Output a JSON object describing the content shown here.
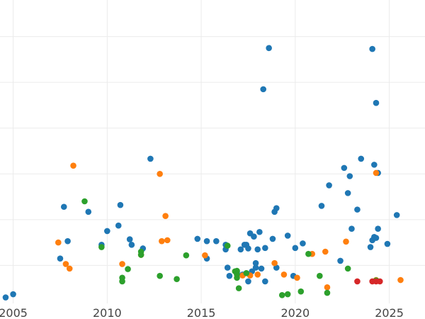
{
  "chart_data": {
    "type": "scatter",
    "title": "",
    "xlabel": "",
    "ylabel": "",
    "grid": true,
    "legend": "none",
    "xlim": [
      2004.3,
      2026.9
    ],
    "ylim": [
      -0.3,
      6.3
    ],
    "x_ticks": [
      2005,
      2010,
      2015,
      2020,
      2025
    ],
    "x_tick_labels": [
      "2005",
      "2010",
      "2015",
      "2020",
      "2025"
    ],
    "y_gridlines": [
      0.5,
      1.5,
      2.5,
      3.5,
      4.5,
      5.5
    ],
    "series": [
      {
        "color": "#1f77b4",
        "points": [
          [
            2004.6,
            -0.2
          ],
          [
            2005.0,
            -0.13
          ],
          [
            2007.5,
            0.65
          ],
          [
            2007.7,
            1.78
          ],
          [
            2007.9,
            1.03
          ],
          [
            2009.0,
            1.67
          ],
          [
            2009.7,
            0.95
          ],
          [
            2010.0,
            1.25
          ],
          [
            2010.6,
            1.37
          ],
          [
            2010.7,
            1.82
          ],
          [
            2011.2,
            1.07
          ],
          [
            2011.3,
            0.95
          ],
          [
            2011.9,
            0.87
          ],
          [
            2012.3,
            2.83
          ],
          [
            2014.8,
            1.08
          ],
          [
            2015.3,
            1.03
          ],
          [
            2015.3,
            0.65
          ],
          [
            2015.8,
            1.03
          ],
          [
            2016.3,
            0.95
          ],
          [
            2016.3,
            0.85
          ],
          [
            2016.4,
            0.45
          ],
          [
            2016.5,
            0.27
          ],
          [
            2016.9,
            0.35
          ],
          [
            2017.1,
            0.85
          ],
          [
            2017.2,
            0.3
          ],
          [
            2017.3,
            0.95
          ],
          [
            2017.4,
            0.95
          ],
          [
            2017.5,
            0.87
          ],
          [
            2017.5,
            0.15
          ],
          [
            2017.6,
            1.2
          ],
          [
            2017.7,
            0.37
          ],
          [
            2017.8,
            1.13
          ],
          [
            2017.9,
            0.45
          ],
          [
            2017.9,
            0.55
          ],
          [
            2018.0,
            0.85
          ],
          [
            2018.1,
            1.23
          ],
          [
            2018.2,
            0.43
          ],
          [
            2018.3,
            4.35
          ],
          [
            2018.4,
            0.15
          ],
          [
            2018.4,
            0.88
          ],
          [
            2018.6,
            5.25
          ],
          [
            2018.8,
            1.08
          ],
          [
            2018.9,
            1.67
          ],
          [
            2019.0,
            1.75
          ],
          [
            2019.0,
            0.45
          ],
          [
            2019.6,
            1.15
          ],
          [
            2019.9,
            0.27
          ],
          [
            2020.0,
            0.88
          ],
          [
            2020.4,
            0.98
          ],
          [
            2021.4,
            1.8
          ],
          [
            2021.8,
            2.25
          ],
          [
            2022.4,
            0.6
          ],
          [
            2022.6,
            2.63
          ],
          [
            2022.8,
            2.08
          ],
          [
            2022.9,
            2.45
          ],
          [
            2023.0,
            1.3
          ],
          [
            2023.3,
            1.72
          ],
          [
            2023.5,
            2.83
          ],
          [
            2024.0,
            0.9
          ],
          [
            2024.1,
            1.05
          ],
          [
            2024.2,
            1.12
          ],
          [
            2024.1,
            5.23
          ],
          [
            2024.2,
            2.7
          ],
          [
            2024.3,
            4.05
          ],
          [
            2024.3,
            1.1
          ],
          [
            2024.4,
            1.3
          ],
          [
            2024.4,
            2.52
          ],
          [
            2024.9,
            0.97
          ],
          [
            2025.4,
            1.6
          ]
        ]
      },
      {
        "color": "#ff7f0e",
        "points": [
          [
            2007.4,
            1.0
          ],
          [
            2007.8,
            0.53
          ],
          [
            2008.0,
            0.43
          ],
          [
            2008.2,
            2.68
          ],
          [
            2010.8,
            0.53
          ],
          [
            2011.8,
            0.73
          ],
          [
            2012.8,
            2.5
          ],
          [
            2012.9,
            1.03
          ],
          [
            2013.1,
            1.58
          ],
          [
            2013.2,
            1.05
          ],
          [
            2015.2,
            0.72
          ],
          [
            2017.2,
            0.28
          ],
          [
            2017.6,
            0.28
          ],
          [
            2018.0,
            0.3
          ],
          [
            2018.9,
            0.55
          ],
          [
            2019.4,
            0.3
          ],
          [
            2020.1,
            0.23
          ],
          [
            2020.9,
            0.75
          ],
          [
            2021.6,
            0.8
          ],
          [
            2021.7,
            0.02
          ],
          [
            2022.7,
            1.02
          ],
          [
            2024.3,
            2.52
          ],
          [
            2024.3,
            0.18
          ],
          [
            2025.6,
            0.18
          ]
        ]
      },
      {
        "color": "#2ca02c",
        "points": [
          [
            2008.8,
            1.9
          ],
          [
            2009.7,
            0.9
          ],
          [
            2010.8,
            0.15
          ],
          [
            2010.8,
            0.23
          ],
          [
            2011.1,
            0.42
          ],
          [
            2011.8,
            0.73
          ],
          [
            2011.8,
            0.8
          ],
          [
            2012.8,
            0.27
          ],
          [
            2013.7,
            0.2
          ],
          [
            2014.2,
            0.72
          ],
          [
            2016.4,
            0.93
          ],
          [
            2016.8,
            0.37
          ],
          [
            2016.9,
            0.38
          ],
          [
            2016.9,
            0.3
          ],
          [
            2016.9,
            0.23
          ],
          [
            2017.0,
            0.0
          ],
          [
            2017.4,
            0.33
          ],
          [
            2019.3,
            -0.15
          ],
          [
            2019.6,
            -0.13
          ],
          [
            2020.3,
            -0.07
          ],
          [
            2020.7,
            0.75
          ],
          [
            2021.3,
            0.27
          ],
          [
            2021.7,
            -0.1
          ],
          [
            2022.8,
            0.43
          ],
          [
            2024.3,
            0.17
          ]
        ]
      },
      {
        "color": "#d62728",
        "points": [
          [
            2023.3,
            0.15
          ],
          [
            2024.1,
            0.15
          ],
          [
            2024.3,
            0.15
          ],
          [
            2024.5,
            0.15
          ]
        ]
      }
    ]
  }
}
